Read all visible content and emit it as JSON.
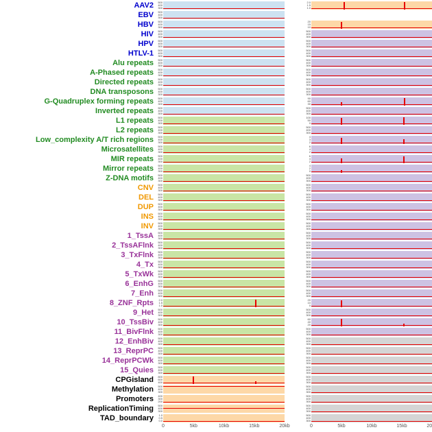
{
  "chart_data": {
    "type": "line",
    "description": "Small-multiple genomic feature density panels: 44 features (rows) x 2 site-set columns, red density signal over distance 0-20kb",
    "panels_columns": 2,
    "x_axis": {
      "ticks": [
        "0",
        "5kb",
        "10kb",
        "15kb",
        "20kb"
      ],
      "range_kb": [
        0,
        20
      ]
    },
    "defaults": {
      "yticks": [
        "500",
        "400",
        "300",
        "200",
        "100",
        "0"
      ],
      "line_h": 0.06
    },
    "colors": {
      "label": {
        "virus": "#0000cd",
        "repeat": "#228b22",
        "sv": "#f09800",
        "chromatin": "#993399",
        "other": "#000000"
      },
      "panel_bg": {
        "blue": "#cde2f1",
        "green": "#c9e5a5",
        "orange": "#fdd8a7",
        "purple": "#cdc2e3",
        "gray": "#d5d5d5"
      },
      "spike": "#e60000"
    },
    "rows": [
      {
        "label": "AAV2",
        "group": "virus",
        "left": {
          "bg": "blue"
        },
        "right": {
          "bg": "orange",
          "yticks": [
            "2.0",
            "1.5",
            "1.0",
            "0.5",
            "0.0"
          ],
          "spikes": [
            {
              "x": 5.5,
              "h": 0.95
            },
            {
              "x": 15.5,
              "h": 0.95
            }
          ]
        }
      },
      {
        "label": "EBV",
        "group": "virus",
        "left": {
          "bg": "blue"
        },
        "right": null
      },
      {
        "label": "HBV",
        "group": "virus",
        "left": {
          "bg": "blue"
        },
        "right": {
          "bg": "orange",
          "yticks": [
            "20",
            "15",
            "10",
            "5",
            "0"
          ],
          "spikes": [
            {
              "x": 5,
              "h": 0.85
            }
          ]
        }
      },
      {
        "label": "HIV",
        "group": "virus",
        "left": {
          "bg": "blue"
        },
        "right": {
          "bg": "purple"
        }
      },
      {
        "label": "HPV",
        "group": "virus",
        "left": {
          "bg": "blue"
        },
        "right": {
          "bg": "purple"
        }
      },
      {
        "label": "HTLV-1",
        "group": "virus",
        "left": {
          "bg": "blue"
        },
        "right": {
          "bg": "purple"
        }
      },
      {
        "label": "Alu repeats",
        "group": "repeat",
        "left": {
          "bg": "blue"
        },
        "right": {
          "bg": "purple"
        }
      },
      {
        "label": "A-Phased repeats",
        "group": "repeat",
        "left": {
          "bg": "blue"
        },
        "right": {
          "bg": "purple"
        }
      },
      {
        "label": "Directed repeats",
        "group": "repeat",
        "left": {
          "bg": "blue"
        },
        "right": {
          "bg": "purple"
        }
      },
      {
        "label": "DNA transposons",
        "group": "repeat",
        "left": {
          "bg": "blue"
        },
        "right": {
          "bg": "purple"
        }
      },
      {
        "label": "G-Quadruplex forming repeats",
        "group": "repeat",
        "left": {
          "bg": "blue"
        },
        "right": {
          "bg": "purple",
          "yticks": [
            "90",
            "60",
            "30",
            "0"
          ],
          "spikes": [
            {
              "x": 5,
              "h": 0.4
            },
            {
              "x": 15.5,
              "h": 0.95
            }
          ]
        }
      },
      {
        "label": "Inverted repeats",
        "group": "repeat",
        "left": {
          "bg": "blue"
        },
        "right": {
          "bg": "purple"
        }
      },
      {
        "label": "L1 repeats",
        "group": "repeat",
        "left": {
          "bg": "green"
        },
        "right": {
          "bg": "purple",
          "yticks": [
            "100",
            "50",
            "0"
          ],
          "spikes": [
            {
              "x": 5,
              "h": 0.8
            },
            {
              "x": 15.3,
              "h": 0.9
            }
          ]
        }
      },
      {
        "label": "L2 repeats",
        "group": "repeat",
        "left": {
          "bg": "green"
        },
        "right": {
          "bg": "purple"
        }
      },
      {
        "label": "Low_complexity A/T rich regions",
        "group": "repeat",
        "left": {
          "bg": "green"
        },
        "right": {
          "bg": "purple",
          "yticks": [
            "4",
            "3",
            "2",
            "1",
            "0"
          ],
          "spikes": [
            {
              "x": 5,
              "h": 0.75
            },
            {
              "x": 15.3,
              "h": 0.55
            }
          ]
        }
      },
      {
        "label": "Microsatellites",
        "group": "repeat",
        "left": {
          "bg": "green"
        },
        "right": {
          "bg": "purple",
          "yticks": [
            "6",
            "4",
            "2",
            "0"
          ]
        }
      },
      {
        "label": "MIR repeats",
        "group": "repeat",
        "left": {
          "bg": "green"
        },
        "right": {
          "bg": "purple",
          "yticks": [
            "6",
            "4",
            "2",
            "0"
          ],
          "spikes": [
            {
              "x": 5,
              "h": 0.55
            },
            {
              "x": 15.3,
              "h": 0.8
            }
          ]
        }
      },
      {
        "label": "Mirror repeats",
        "group": "repeat",
        "left": {
          "bg": "green"
        },
        "right": {
          "bg": "purple",
          "yticks": [
            "4",
            "2",
            "0"
          ],
          "spikes": [
            {
              "x": 5,
              "h": 0.35
            }
          ]
        }
      },
      {
        "label": "Z-DNA motifs",
        "group": "repeat",
        "left": {
          "bg": "green"
        },
        "right": {
          "bg": "purple"
        }
      },
      {
        "label": "CNV",
        "group": "sv",
        "left": {
          "bg": "green"
        },
        "right": {
          "bg": "purple"
        }
      },
      {
        "label": "DEL",
        "group": "sv",
        "left": {
          "bg": "green"
        },
        "right": {
          "bg": "purple"
        }
      },
      {
        "label": "DUP",
        "group": "sv",
        "left": {
          "bg": "green"
        },
        "right": {
          "bg": "purple"
        }
      },
      {
        "label": "INS",
        "group": "sv",
        "left": {
          "bg": "green"
        },
        "right": {
          "bg": "purple"
        }
      },
      {
        "label": "INV",
        "group": "sv",
        "left": {
          "bg": "green"
        },
        "right": {
          "bg": "purple"
        }
      },
      {
        "label": "1_TssA",
        "group": "chromatin",
        "left": {
          "bg": "green"
        },
        "right": {
          "bg": "purple"
        }
      },
      {
        "label": "2_TssAFlnk",
        "group": "chromatin",
        "left": {
          "bg": "green"
        },
        "right": {
          "bg": "purple"
        }
      },
      {
        "label": "3_TxFlnk",
        "group": "chromatin",
        "left": {
          "bg": "green"
        },
        "right": {
          "bg": "purple"
        }
      },
      {
        "label": "4_Tx",
        "group": "chromatin",
        "left": {
          "bg": "green"
        },
        "right": {
          "bg": "purple"
        }
      },
      {
        "label": "5_TxWk",
        "group": "chromatin",
        "left": {
          "bg": "green"
        },
        "right": {
          "bg": "purple"
        }
      },
      {
        "label": "6_EnhG",
        "group": "chromatin",
        "left": {
          "bg": "green"
        },
        "right": {
          "bg": "purple"
        }
      },
      {
        "label": "7_Enh",
        "group": "chromatin",
        "left": {
          "bg": "green"
        },
        "right": {
          "bg": "purple"
        }
      },
      {
        "label": "8_ZNF_Rpts",
        "group": "chromatin",
        "left": {
          "bg": "green",
          "yticks": [
            "2.0",
            "1.5",
            "1.0",
            "0.5",
            "0.0"
          ],
          "spikes": [
            {
              "x": 15.2,
              "h": 0.9
            }
          ]
        },
        "right": {
          "bg": "purple",
          "yticks": [
            "20",
            "10",
            "0"
          ],
          "spikes": [
            {
              "x": 5,
              "h": 0.8
            }
          ]
        }
      },
      {
        "label": "9_Het",
        "group": "chromatin",
        "left": {
          "bg": "green"
        },
        "right": {
          "bg": "purple"
        }
      },
      {
        "label": "10_TssBiv",
        "group": "chromatin",
        "left": {
          "bg": "green"
        },
        "right": {
          "bg": "purple",
          "yticks": [
            "60",
            "40",
            "20",
            "0"
          ],
          "spikes": [
            {
              "x": 5,
              "h": 0.9
            },
            {
              "x": 15.3,
              "h": 0.35
            }
          ]
        }
      },
      {
        "label": "11_BivFlnk",
        "group": "chromatin",
        "left": {
          "bg": "green"
        },
        "right": {
          "bg": "purple"
        }
      },
      {
        "label": "12_EnhBiv",
        "group": "chromatin",
        "left": {
          "bg": "green"
        },
        "right": {
          "bg": "gray"
        }
      },
      {
        "label": "13_ReprPC",
        "group": "chromatin",
        "left": {
          "bg": "green"
        },
        "right": {
          "bg": "gray"
        }
      },
      {
        "label": "14_ReprPCWk",
        "group": "chromatin",
        "left": {
          "bg": "green"
        },
        "right": {
          "bg": "gray"
        }
      },
      {
        "label": "15_Quies",
        "group": "chromatin",
        "left": {
          "bg": "green"
        },
        "right": {
          "bg": "gray"
        }
      },
      {
        "label": "CPGisland",
        "group": "other",
        "left": {
          "bg": "orange",
          "yticks": [
            "800",
            "600",
            "400",
            "200",
            "0"
          ],
          "spikes": [
            {
              "x": 5,
              "h": 0.95
            },
            {
              "x": 15.2,
              "h": 0.3
            }
          ]
        },
        "right": {
          "bg": "gray"
        }
      },
      {
        "label": "Methylation",
        "group": "other",
        "left": {
          "bg": "orange",
          "line_h": 0.85
        },
        "right": {
          "bg": "gray"
        }
      },
      {
        "label": "Promoters",
        "group": "other",
        "left": {
          "bg": "orange",
          "yticks": [
            "400",
            "300",
            "200",
            "100",
            "0"
          ]
        },
        "right": {
          "bg": "gray"
        }
      },
      {
        "label": "ReplicationTiming",
        "group": "other",
        "left": {
          "bg": "orange",
          "line_h": 0.5
        },
        "right": {
          "bg": "gray"
        }
      },
      {
        "label": "TAD_boundary",
        "group": "other",
        "left": {
          "bg": "orange",
          "yticks": [
            "1.0",
            "0.5",
            "0.0",
            "-0.5",
            "-1.0"
          ]
        },
        "right": {
          "bg": "gray"
        }
      }
    ]
  }
}
